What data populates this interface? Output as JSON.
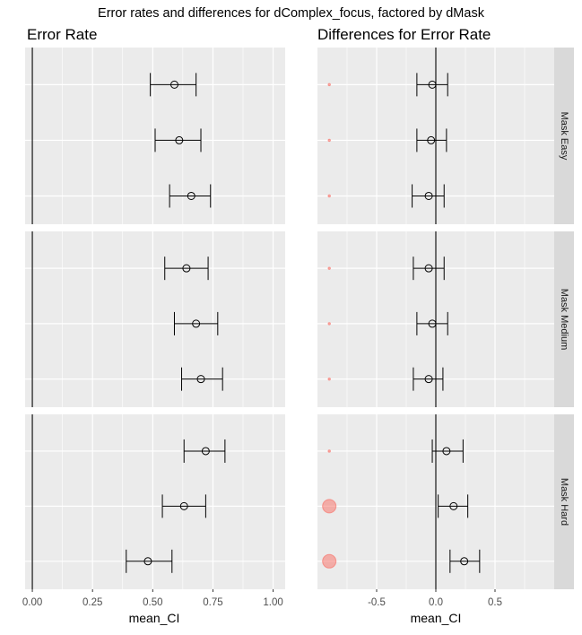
{
  "figure": {
    "title": "Error rates and differences for dComplex_focus, factored by dMask"
  },
  "chart_data": [
    {
      "type": "scatter",
      "title": "Error Rate",
      "xlabel": "mean_CI",
      "ylabel": "",
      "xlim": [
        -0.03,
        1.05
      ],
      "x_ticks": [
        0.0,
        0.25,
        0.5,
        0.75,
        1.0
      ],
      "x_tick_labels": [
        "0.00",
        "0.25",
        "0.50",
        "0.75",
        "1.00"
      ],
      "reference_line_x": 0,
      "grid": true,
      "facets": [
        {
          "label": "Mask Easy",
          "points": [
            {
              "mean": 0.59,
              "lower": 0.49,
              "upper": 0.68
            },
            {
              "mean": 0.61,
              "lower": 0.51,
              "upper": 0.7
            },
            {
              "mean": 0.66,
              "lower": 0.57,
              "upper": 0.74
            }
          ]
        },
        {
          "label": "Mask Medium",
          "points": [
            {
              "mean": 0.64,
              "lower": 0.55,
              "upper": 0.73
            },
            {
              "mean": 0.68,
              "lower": 0.59,
              "upper": 0.77
            },
            {
              "mean": 0.7,
              "lower": 0.62,
              "upper": 0.79
            }
          ]
        },
        {
          "label": "Mask Hard",
          "points": [
            {
              "mean": 0.72,
              "lower": 0.63,
              "upper": 0.8
            },
            {
              "mean": 0.63,
              "lower": 0.54,
              "upper": 0.72
            },
            {
              "mean": 0.48,
              "lower": 0.39,
              "upper": 0.58
            }
          ]
        }
      ]
    },
    {
      "type": "scatter",
      "title": "Differences for Error Rate",
      "xlabel": "mean_CI",
      "ylabel": "",
      "xlim": [
        -1.0,
        1.0
      ],
      "x_ticks": [
        -0.5,
        0.0,
        0.5
      ],
      "x_tick_labels": [
        "-0.5",
        "0.0",
        "0.5"
      ],
      "reference_line_x": 0,
      "grid": true,
      "marker_color": "#f8766d",
      "facets": [
        {
          "label": "Mask Easy",
          "points": [
            {
              "mean": -0.03,
              "lower": -0.16,
              "upper": 0.1,
              "marker_size": "tiny"
            },
            {
              "mean": -0.04,
              "lower": -0.16,
              "upper": 0.09,
              "marker_size": "tiny"
            },
            {
              "mean": -0.06,
              "lower": -0.2,
              "upper": 0.07,
              "marker_size": "tiny"
            }
          ]
        },
        {
          "label": "Mask Medium",
          "points": [
            {
              "mean": -0.06,
              "lower": -0.19,
              "upper": 0.07,
              "marker_size": "tiny"
            },
            {
              "mean": -0.03,
              "lower": -0.16,
              "upper": 0.1,
              "marker_size": "tiny"
            },
            {
              "mean": -0.06,
              "lower": -0.19,
              "upper": 0.06,
              "marker_size": "tiny"
            }
          ]
        },
        {
          "label": "Mask Hard",
          "points": [
            {
              "mean": 0.09,
              "lower": -0.03,
              "upper": 0.23,
              "marker_size": "tiny"
            },
            {
              "mean": 0.15,
              "lower": 0.02,
              "upper": 0.27,
              "marker_size": "large"
            },
            {
              "mean": 0.24,
              "lower": 0.12,
              "upper": 0.37,
              "marker_size": "large"
            }
          ]
        }
      ]
    }
  ]
}
